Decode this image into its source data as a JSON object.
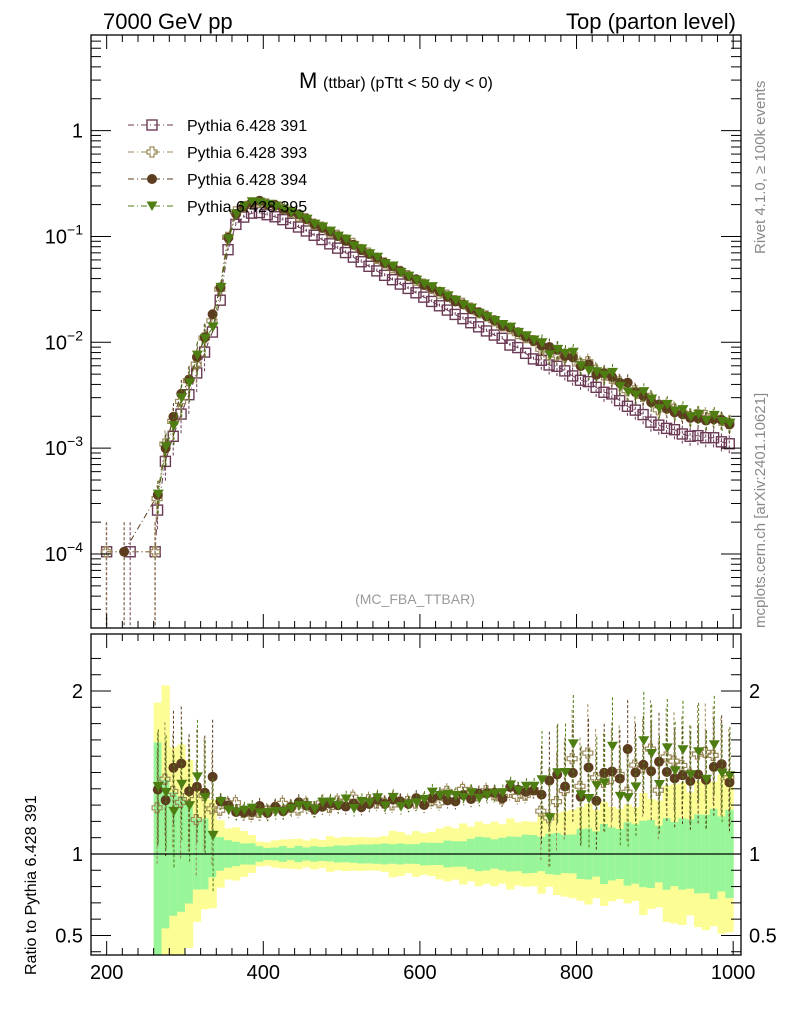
{
  "header": {
    "left": "7000 GeV pp",
    "right": "Top (parton level)"
  },
  "side_labels": {
    "upper": "Rivet 4.1.0, ≥ 100k events",
    "lower": "mcplots.cern.ch [arXiv:2401.10621]"
  },
  "watermark": "(MC_FBA_TTBAR)",
  "colors": {
    "s391": "#6b3a55",
    "s393": "#9c8a5a",
    "s394": "#5c3d20",
    "s395": "#4e7d12",
    "band_yellow": "#fdfd96",
    "band_green": "#99f59a"
  },
  "chart_data": [
    {
      "type": "scatter",
      "panel": "main",
      "title_main": "M",
      "title_sub": "(ttbar) (pTtt < 50 dy < 0)",
      "xlabel": "",
      "ylabel": "",
      "xlim": [
        180,
        1010
      ],
      "ylim": [
        2e-05,
        8
      ],
      "yscale": "log",
      "x_ticks": [
        200,
        400,
        600,
        800,
        1000
      ],
      "y_ticks": [
        {
          "value": 1,
          "base": "1",
          "exp": ""
        },
        {
          "value": 0.1,
          "base": "10",
          "exp": "−1"
        },
        {
          "value": 0.01,
          "base": "10",
          "exp": "−2"
        },
        {
          "value": 0.001,
          "base": "10",
          "exp": "−3"
        },
        {
          "value": 0.0001,
          "base": "10",
          "exp": "−4"
        }
      ],
      "legend_position": "top-left",
      "series": [
        {
          "name": "Pythia 6.428 391",
          "marker": "open-square",
          "color": "#6b3a55",
          "is_reference": true
        },
        {
          "name": "Pythia 6.428 393",
          "marker": "open-cross",
          "color": "#9c8a5a"
        },
        {
          "name": "Pythia 6.428 394",
          "marker": "filled-circle",
          "color": "#5c3d20"
        },
        {
          "name": "Pythia 6.428 395",
          "marker": "filled-triangle-down",
          "color": "#4e7d12"
        }
      ],
      "shape_model": {
        "description": "Reference (391) curve: steep rise from threshold, peak near 390 GeV, exponential fall-off",
        "reference_points": [
          {
            "x": 200,
            "y": 0.000105
          },
          {
            "x": 230,
            "y": 0.000105
          },
          {
            "x": 262,
            "y": 0.000105
          },
          {
            "x": 265,
            "y": 0.00026
          },
          {
            "x": 275,
            "y": 0.00075
          },
          {
            "x": 290,
            "y": 0.0017
          },
          {
            "x": 305,
            "y": 0.0032
          },
          {
            "x": 320,
            "y": 0.0065
          },
          {
            "x": 335,
            "y": 0.0125
          },
          {
            "x": 345,
            "y": 0.025
          },
          {
            "x": 355,
            "y": 0.075
          },
          {
            "x": 365,
            "y": 0.13
          },
          {
            "x": 380,
            "y": 0.165
          },
          {
            "x": 395,
            "y": 0.168
          },
          {
            "x": 420,
            "y": 0.15
          },
          {
            "x": 450,
            "y": 0.118
          },
          {
            "x": 500,
            "y": 0.074
          },
          {
            "x": 550,
            "y": 0.045
          },
          {
            "x": 600,
            "y": 0.028
          },
          {
            "x": 650,
            "y": 0.0175
          },
          {
            "x": 700,
            "y": 0.0112
          },
          {
            "x": 750,
            "y": 0.0071
          },
          {
            "x": 800,
            "y": 0.0046
          },
          {
            "x": 850,
            "y": 0.003
          },
          {
            "x": 900,
            "y": 0.0017
          },
          {
            "x": 950,
            "y": 0.0013
          },
          {
            "x": 1000,
            "y": 0.00115
          }
        ]
      }
    },
    {
      "type": "scatter",
      "panel": "ratio",
      "ylabel": "Ratio to Pythia 6.428 391",
      "xlim": [
        180,
        1010
      ],
      "ylim": [
        0.38,
        2.35
      ],
      "x_ticks": [
        200,
        400,
        600,
        800,
        1000
      ],
      "x_tick_labels": [
        "200",
        "400",
        "600",
        "800",
        "1000"
      ],
      "y_ticks": [
        0.5,
        1,
        2
      ],
      "y_tick_labels": [
        "0.5",
        "1",
        "2"
      ],
      "reference_line": 1,
      "ratio_model": {
        "description": "Approximate ratio of 393/394/395 to 391 vs mass",
        "points": [
          {
            "x": 265,
            "ratio": 1.35
          },
          {
            "x": 290,
            "ratio": 1.45
          },
          {
            "x": 310,
            "ratio": 1.33
          },
          {
            "x": 330,
            "ratio": 1.3
          },
          {
            "x": 350,
            "ratio": 1.3
          },
          {
            "x": 380,
            "ratio": 1.25
          },
          {
            "x": 420,
            "ratio": 1.27
          },
          {
            "x": 500,
            "ratio": 1.32
          },
          {
            "x": 600,
            "ratio": 1.33
          },
          {
            "x": 700,
            "ratio": 1.37
          },
          {
            "x": 800,
            "ratio": 1.42
          },
          {
            "x": 900,
            "ratio": 1.55
          },
          {
            "x": 1000,
            "ratio": 1.5
          }
        ],
        "band_green_halfwidth": [
          {
            "x": 262,
            "hw": 0.65
          },
          {
            "x": 300,
            "hw": 0.3
          },
          {
            "x": 350,
            "hw": 0.1
          },
          {
            "x": 400,
            "hw": 0.04
          },
          {
            "x": 500,
            "hw": 0.05
          },
          {
            "x": 600,
            "hw": 0.07
          },
          {
            "x": 700,
            "hw": 0.1
          },
          {
            "x": 800,
            "hw": 0.14
          },
          {
            "x": 900,
            "hw": 0.2
          },
          {
            "x": 1000,
            "hw": 0.26
          }
        ],
        "band_yellow_halfwidth": [
          {
            "x": 262,
            "hw": 1.1
          },
          {
            "x": 300,
            "hw": 0.55
          },
          {
            "x": 350,
            "hw": 0.18
          },
          {
            "x": 400,
            "hw": 0.07
          },
          {
            "x": 500,
            "hw": 0.1
          },
          {
            "x": 600,
            "hw": 0.14
          },
          {
            "x": 700,
            "hw": 0.19
          },
          {
            "x": 800,
            "hw": 0.26
          },
          {
            "x": 900,
            "hw": 0.36
          },
          {
            "x": 1000,
            "hw": 0.45
          }
        ]
      }
    }
  ]
}
